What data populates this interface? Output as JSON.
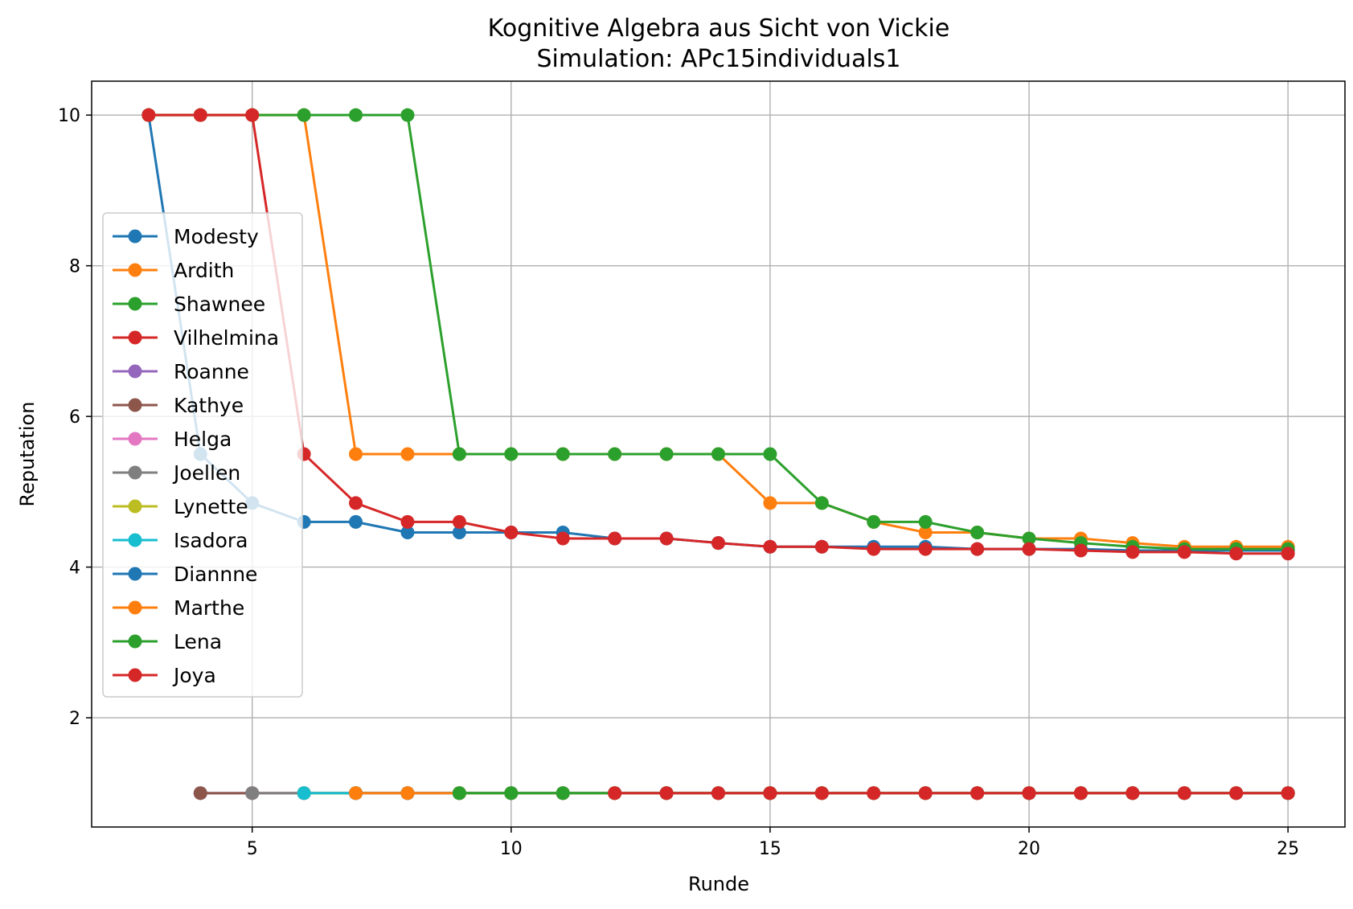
{
  "chart_data": {
    "type": "line",
    "title": "Kognitive Algebra aus Sicht von Vickie",
    "subtitle": "Simulation: APc15individuals1",
    "xlabel": "Runde",
    "ylabel": "Reputation",
    "xlim": [
      1.9,
      26.1
    ],
    "ylim": [
      0.55,
      10.45
    ],
    "xticks": [
      5,
      10,
      15,
      20,
      25
    ],
    "yticks": [
      2,
      4,
      6,
      8,
      10
    ],
    "grid": true,
    "legend": "center-left",
    "series": [
      {
        "name": "Modesty",
        "color": "#1f77b4",
        "x": [
          3,
          4,
          5,
          6,
          7,
          8,
          9,
          10,
          11,
          12,
          13,
          14,
          15,
          16,
          17,
          18,
          19,
          20,
          21,
          22,
          23,
          24,
          25
        ],
        "values": [
          10,
          5.5,
          4.85,
          4.6,
          4.6,
          4.46,
          4.46,
          4.46,
          4.46,
          4.38,
          4.38,
          4.32,
          4.27,
          4.27,
          4.27,
          4.27,
          4.24,
          4.24,
          4.24,
          4.22,
          4.22,
          4.22,
          4.22
        ]
      },
      {
        "name": "Ardith",
        "color": "#ff7f0e",
        "x": [
          3,
          4,
          5,
          6,
          7,
          8,
          9,
          10,
          11,
          12,
          13,
          14,
          15,
          16,
          17,
          18,
          19,
          20,
          21,
          22,
          23,
          24,
          25
        ],
        "values": [
          10,
          10,
          10,
          10,
          5.5,
          5.5,
          5.5,
          5.5,
          5.5,
          5.5,
          5.5,
          5.5,
          4.85,
          4.85,
          4.6,
          4.46,
          4.46,
          4.38,
          4.38,
          4.32,
          4.27,
          4.27,
          4.27
        ]
      },
      {
        "name": "Shawnee",
        "color": "#2ca02c",
        "x": [
          3,
          4,
          5,
          6,
          7,
          8,
          9,
          10,
          11,
          12,
          13,
          14,
          15,
          16,
          17,
          18,
          19,
          20,
          21,
          22,
          23,
          24,
          25
        ],
        "values": [
          10,
          10,
          10,
          10,
          10,
          10,
          5.5,
          5.5,
          5.5,
          5.5,
          5.5,
          5.5,
          5.5,
          4.85,
          4.6,
          4.6,
          4.46,
          4.38,
          4.32,
          4.27,
          4.24,
          4.24,
          4.24
        ]
      },
      {
        "name": "Vilhelmina",
        "color": "#d62728",
        "x": [
          3,
          4,
          5,
          6,
          7,
          8,
          9,
          10,
          11,
          12,
          13,
          14,
          15,
          16,
          17,
          18,
          19,
          20,
          21,
          22,
          23,
          24,
          25
        ],
        "values": [
          10,
          10,
          10,
          5.5,
          4.85,
          4.6,
          4.6,
          4.46,
          4.38,
          4.38,
          4.38,
          4.32,
          4.27,
          4.27,
          4.24,
          4.24,
          4.24,
          4.24,
          4.22,
          4.2,
          4.2,
          4.18,
          4.18
        ]
      },
      {
        "name": "Roanne",
        "color": "#9467bd",
        "x": [
          4,
          5,
          6,
          7,
          8,
          9,
          10,
          11,
          12,
          13,
          14,
          15,
          16,
          17,
          18,
          19,
          20,
          21,
          22,
          23,
          24,
          25
        ],
        "values": [
          1,
          1,
          1,
          1,
          1,
          1,
          1,
          1,
          1,
          1,
          1,
          1,
          1,
          1,
          1,
          1,
          1,
          1,
          1,
          1,
          1,
          1
        ]
      },
      {
        "name": "Kathye",
        "color": "#8c564b",
        "x": [
          4,
          5,
          6,
          7,
          8,
          9,
          10,
          11,
          12,
          13,
          14,
          15,
          16,
          17,
          18,
          19,
          20,
          21,
          22,
          23,
          24,
          25
        ],
        "values": [
          1,
          1,
          1,
          1,
          1,
          1,
          1,
          1,
          1,
          1,
          1,
          1,
          1,
          1,
          1,
          1,
          1,
          1,
          1,
          1,
          1,
          1
        ]
      },
      {
        "name": "Helga",
        "color": "#e377c2",
        "x": [
          5,
          6,
          7,
          8,
          9,
          10,
          11,
          12,
          13,
          14,
          15,
          16,
          17,
          18,
          19,
          20,
          21,
          22,
          23,
          24,
          25
        ],
        "values": [
          1,
          1,
          1,
          1,
          1,
          1,
          1,
          1,
          1,
          1,
          1,
          1,
          1,
          1,
          1,
          1,
          1,
          1,
          1,
          1,
          1
        ]
      },
      {
        "name": "Joellen",
        "color": "#7f7f7f",
        "x": [
          5,
          6,
          7,
          8,
          9,
          10,
          11,
          12,
          13,
          14,
          15,
          16,
          17,
          18,
          19,
          20,
          21,
          22,
          23,
          24,
          25
        ],
        "values": [
          1,
          1,
          1,
          1,
          1,
          1,
          1,
          1,
          1,
          1,
          1,
          1,
          1,
          1,
          1,
          1,
          1,
          1,
          1,
          1,
          1
        ]
      },
      {
        "name": "Lynette",
        "color": "#bcbd22",
        "x": [
          6,
          7,
          8,
          9,
          10,
          11,
          12,
          13,
          14,
          15,
          16,
          17,
          18,
          19,
          20,
          21,
          22,
          23,
          24,
          25
        ],
        "values": [
          1,
          1,
          1,
          1,
          1,
          1,
          1,
          1,
          1,
          1,
          1,
          1,
          1,
          1,
          1,
          1,
          1,
          1,
          1,
          1
        ]
      },
      {
        "name": "Isadora",
        "color": "#17becf",
        "x": [
          6,
          7,
          8,
          9,
          10,
          11,
          12,
          13,
          14,
          15,
          16,
          17,
          18,
          19,
          20,
          21,
          22,
          23,
          24,
          25
        ],
        "values": [
          1,
          1,
          1,
          1,
          1,
          1,
          1,
          1,
          1,
          1,
          1,
          1,
          1,
          1,
          1,
          1,
          1,
          1,
          1,
          1
        ]
      },
      {
        "name": "Diannne",
        "color": "#1f77b4",
        "x": [
          7,
          8,
          9,
          10,
          11,
          12,
          13,
          14,
          15,
          16,
          17,
          18,
          19,
          20,
          21,
          22,
          23,
          24,
          25
        ],
        "values": [
          1,
          1,
          1,
          1,
          1,
          1,
          1,
          1,
          1,
          1,
          1,
          1,
          1,
          1,
          1,
          1,
          1,
          1,
          1
        ]
      },
      {
        "name": "Marthe",
        "color": "#ff7f0e",
        "x": [
          7,
          8,
          9,
          10,
          11,
          12,
          13,
          14,
          15,
          16,
          17,
          18,
          19,
          20,
          21,
          22,
          23,
          24,
          25
        ],
        "values": [
          1,
          1,
          1,
          1,
          1,
          1,
          1,
          1,
          1,
          1,
          1,
          1,
          1,
          1,
          1,
          1,
          1,
          1,
          1
        ]
      },
      {
        "name": "Lena",
        "color": "#2ca02c",
        "x": [
          9,
          10,
          11,
          12,
          13,
          14,
          15,
          16,
          17,
          18,
          19,
          20,
          21,
          22,
          23,
          24,
          25
        ],
        "values": [
          1,
          1,
          1,
          1,
          1,
          1,
          1,
          1,
          1,
          1,
          1,
          1,
          1,
          1,
          1,
          1,
          1
        ]
      },
      {
        "name": "Joya",
        "color": "#d62728",
        "x": [
          12,
          13,
          14,
          15,
          16,
          17,
          18,
          19,
          20,
          21,
          22,
          23,
          24,
          25
        ],
        "values": [
          1,
          1,
          1,
          1,
          1,
          1,
          1,
          1,
          1,
          1,
          1,
          1,
          1,
          1
        ]
      }
    ]
  }
}
